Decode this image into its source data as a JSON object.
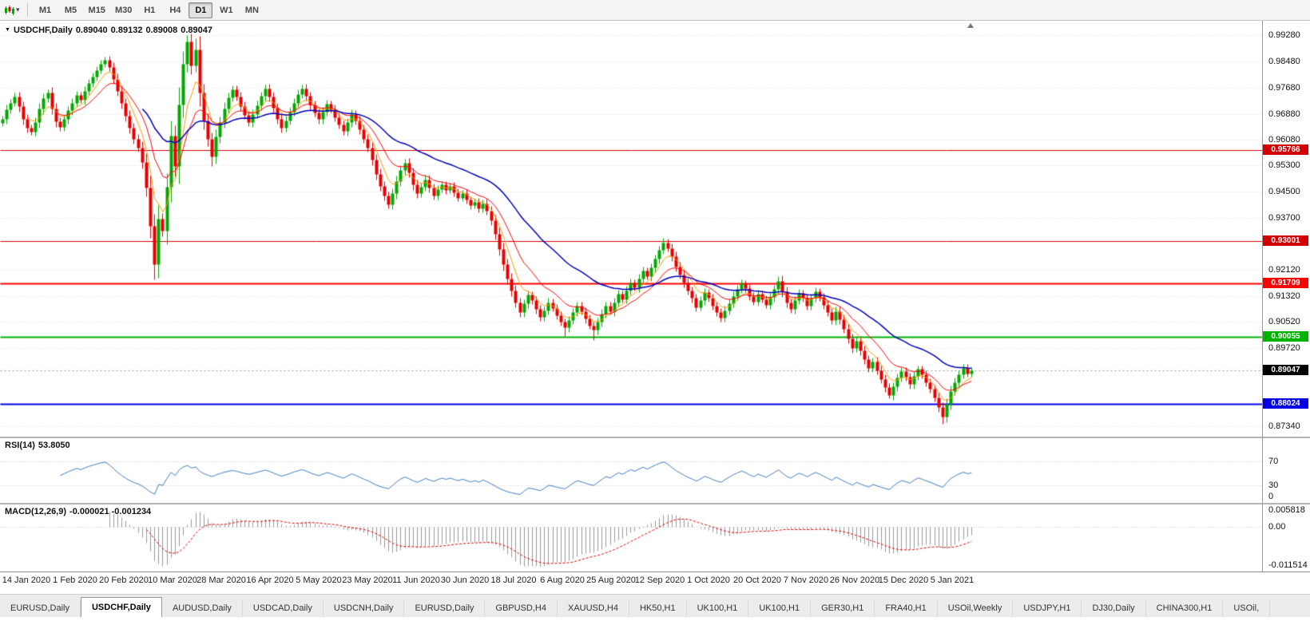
{
  "toolbar": {
    "timeframes": [
      "M1",
      "M5",
      "M15",
      "M30",
      "H1",
      "H4",
      "D1",
      "W1",
      "MN"
    ],
    "active_timeframe": "D1"
  },
  "chart": {
    "title": "USDCHF,Daily",
    "ohlc": {
      "open": "0.89040",
      "high": "0.89132",
      "low": "0.89008",
      "close": "0.89047"
    },
    "price_axis": {
      "p_max": 0.9972,
      "p_min": 0.8702,
      "ticks": [
        "0.99280",
        "0.98480",
        "0.97680",
        "0.96880",
        "0.96080",
        "0.95300",
        "0.94500",
        "0.93700",
        "0.92120",
        "0.91320",
        "0.90520",
        "0.89720",
        "0.87340"
      ]
    },
    "hlines": [
      {
        "price": 0.95766,
        "label": "0.95766",
        "color": "#d20000",
        "width": 1
      },
      {
        "price": 0.93001,
        "label": "0.93001",
        "color": "#d20000",
        "width": 1
      },
      {
        "price": 0.91709,
        "label": "0.91709",
        "color": "#ff0000",
        "width": 2
      },
      {
        "price": 0.90055,
        "label": "0.90055",
        "color": "#00b300",
        "width": 2
      },
      {
        "price": 0.88024,
        "label": "0.88024",
        "color": "#0000e6",
        "width": 2
      }
    ],
    "current_price": {
      "price": 0.89047,
      "label": "0.89047",
      "bg": "#000000"
    },
    "date_labels": [
      "14 Jan 2020",
      "1 Feb 2020",
      "20 Feb 2020",
      "10 Mar 2020",
      "28 Mar 2020",
      "16 Apr 2020",
      "5 May 2020",
      "23 May 2020",
      "11 Jun 2020",
      "30 Jun 2020",
      "18 Jul 2020",
      "6 Aug 2020",
      "25 Aug 2020",
      "12 Sep 2020",
      "1 Oct 2020",
      "20 Oct 2020",
      "7 Nov 2020",
      "26 Nov 2020",
      "15 Dec 2020",
      "5 Jan 2021"
    ],
    "moving_averages": [
      {
        "period": 6,
        "color": "#ff9900",
        "width": 1
      },
      {
        "period": 13,
        "color": "#ff0000",
        "width": 1
      },
      {
        "period": 34,
        "color": "#0000bb",
        "width": 1.5
      }
    ],
    "colors": {
      "up": "#00a800",
      "down": "#e60000",
      "grid": "#dcdcdc",
      "current_line": "#999999"
    }
  },
  "chart_data": {
    "type": "candlestick",
    "symbol": "USDCHF",
    "timeframe": "Daily",
    "x_range": [
      "14 Jan 2020",
      "15 Jan 2021"
    ],
    "y_range": [
      0.8734,
      0.9928
    ],
    "first_open": 0.966,
    "closes": [
      0.9672,
      0.9701,
      0.9722,
      0.9741,
      0.971,
      0.9672,
      0.9645,
      0.9634,
      0.9662,
      0.9703,
      0.9735,
      0.9752,
      0.9705,
      0.9665,
      0.9648,
      0.9672,
      0.9698,
      0.9722,
      0.9745,
      0.9731,
      0.9758,
      0.9782,
      0.9801,
      0.9822,
      0.9841,
      0.9852,
      0.983,
      0.9795,
      0.9758,
      0.972,
      0.9682,
      0.9645,
      0.9612,
      0.9585,
      0.954,
      0.9462,
      0.9345,
      0.9228,
      0.9368,
      0.9331,
      0.9465,
      0.9622,
      0.9528,
      0.9715,
      0.984,
      0.9908,
      0.9835,
      0.9885,
      0.9752,
      0.9668,
      0.9611,
      0.9558,
      0.9618,
      0.9662,
      0.9705,
      0.9738,
      0.9762,
      0.9741,
      0.9712,
      0.9685,
      0.9662,
      0.9688,
      0.9714,
      0.9742,
      0.9765,
      0.974,
      0.9706,
      0.9672,
      0.9645,
      0.9668,
      0.9695,
      0.9722,
      0.9748,
      0.9766,
      0.9742,
      0.9715,
      0.9692,
      0.9671,
      0.9695,
      0.9718,
      0.9702,
      0.9678,
      0.9655,
      0.9635,
      0.9662,
      0.9688,
      0.9668,
      0.964,
      0.9612,
      0.9585,
      0.9548,
      0.9505,
      0.9468,
      0.9438,
      0.9412,
      0.9445,
      0.9482,
      0.9515,
      0.9538,
      0.9508,
      0.9472,
      0.9445,
      0.9465,
      0.9488,
      0.9462,
      0.9438,
      0.9458,
      0.9472,
      0.9455,
      0.9468,
      0.9448,
      0.9432,
      0.9445,
      0.9425,
      0.9408,
      0.9418,
      0.9398,
      0.9415,
      0.9392,
      0.9362,
      0.9322,
      0.9275,
      0.9228,
      0.9185,
      0.9148,
      0.9112,
      0.9082,
      0.9108,
      0.9135,
      0.9118,
      0.9092,
      0.9068,
      0.9088,
      0.9112,
      0.9095,
      0.9072,
      0.9052,
      0.9035,
      0.9058,
      0.9082,
      0.9102,
      0.9085,
      0.9062,
      0.9042,
      0.9028,
      0.9052,
      0.9078,
      0.9102,
      0.9085,
      0.9112,
      0.9138,
      0.9122,
      0.9148,
      0.9172,
      0.9158,
      0.9185,
      0.9208,
      0.9192,
      0.9218,
      0.9245,
      0.9272,
      0.9295,
      0.9278,
      0.9252,
      0.9222,
      0.9198,
      0.9172,
      0.9148,
      0.9125,
      0.9098,
      0.9118,
      0.9142,
      0.9125,
      0.9102,
      0.9082,
      0.9065,
      0.9088,
      0.911,
      0.9132,
      0.9152,
      0.917,
      0.9155,
      0.9132,
      0.9115,
      0.9138,
      0.9122,
      0.9105,
      0.9128,
      0.9152,
      0.9178,
      0.9145,
      0.9112,
      0.9092,
      0.9118,
      0.914,
      0.9125,
      0.9102,
      0.9125,
      0.9145,
      0.9128,
      0.9105,
      0.9082,
      0.9058,
      0.9085,
      0.906,
      0.9032,
      0.9002,
      0.8972,
      0.8995,
      0.8965,
      0.8938,
      0.8912,
      0.8932,
      0.8905,
      0.8878,
      0.8852,
      0.8828,
      0.8855,
      0.8882,
      0.8902,
      0.8885,
      0.8862,
      0.8888,
      0.8908,
      0.8892,
      0.8868,
      0.8848,
      0.8822,
      0.8792,
      0.8762,
      0.8802,
      0.8842,
      0.8868,
      0.8892,
      0.8912,
      0.8895,
      0.8905
    ],
    "spikes": [
      {
        "i": 37,
        "l": 0.9182
      },
      {
        "i": 45,
        "h": 0.9928
      },
      {
        "i": 47,
        "h": 0.9918
      },
      {
        "i": 51,
        "l": 0.9528
      },
      {
        "i": 137,
        "l": 0.9008
      },
      {
        "i": 144,
        "l": 0.8998
      },
      {
        "i": 216,
        "l": 0.8818
      },
      {
        "i": 229,
        "l": 0.874
      }
    ]
  },
  "rsi": {
    "label": "RSI(14)",
    "value": "53.8050",
    "period": 14,
    "color": "#3e7bbf",
    "levels": [
      {
        "v": 70,
        "label": "70"
      },
      {
        "v": 30,
        "label": "30"
      },
      {
        "v": 0,
        "label": "0"
      }
    ]
  },
  "macd": {
    "label": "MACD(12,26,9)",
    "values": "-0.000021 -0.001234",
    "fast": 12,
    "slow": 26,
    "signal": 9,
    "hist_color": "#999999",
    "signal_color": "#e00000",
    "scale": {
      "max": 0.005818,
      "max_label": "0.005818",
      "zero_label": "0.00",
      "min": -0.011514,
      "min_label": "-0.011514"
    }
  },
  "tabs": {
    "active_index": 1,
    "items": [
      "EURUSD,Daily",
      "USDCHF,Daily",
      "AUDUSD,Daily",
      "USDCAD,Daily",
      "USDCNH,Daily",
      "EURUSD,Daily",
      "GBPUSD,H4",
      "XAUUSD,H4",
      "HK50,H1",
      "UK100,H1",
      "UK100,H1",
      "GER30,H1",
      "FRA40,H1",
      "USOil,Weekly",
      "USDJPY,H1",
      "DJ30,Daily",
      "CHINA300,H1",
      "USOil,"
    ]
  }
}
